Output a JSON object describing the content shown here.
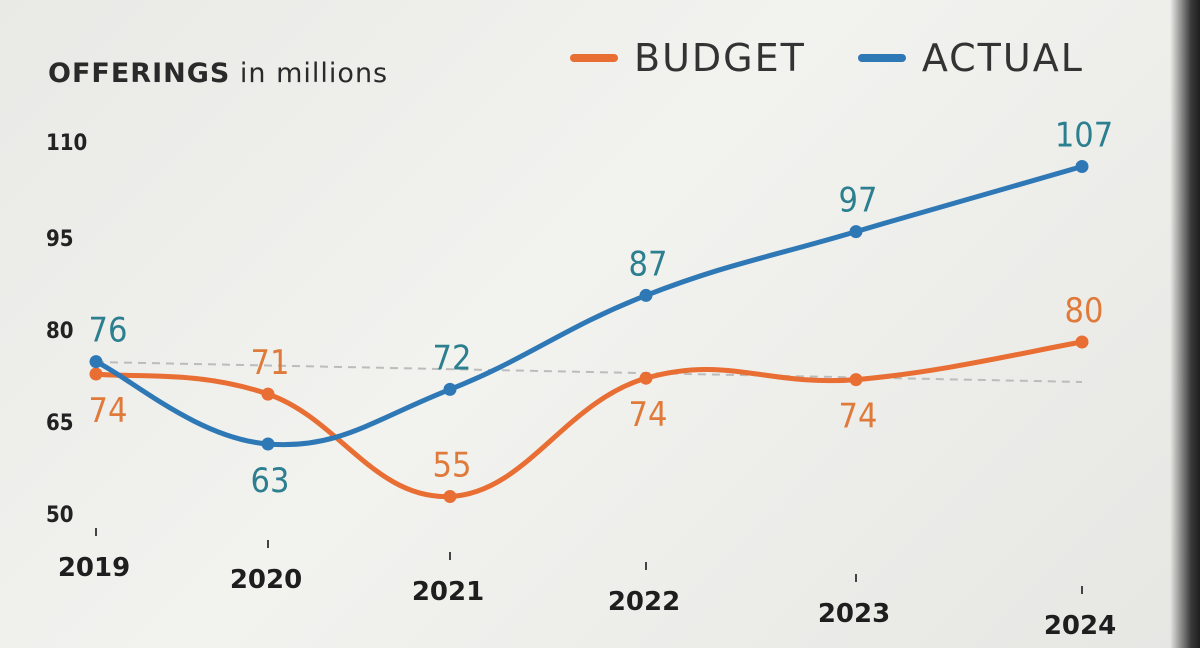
{
  "title": {
    "main": "OFFERINGS",
    "unit": "in millions"
  },
  "legend": [
    {
      "label": "BUDGET",
      "color": "#e86e33"
    },
    {
      "label": "ACTUAL",
      "color": "#2f78b6"
    }
  ],
  "chart_data": {
    "type": "line",
    "title": "OFFERINGS in millions",
    "categories": [
      "2019",
      "2020",
      "2021",
      "2022",
      "2023",
      "2024"
    ],
    "yticks": [
      "110",
      "95",
      "80",
      "65",
      "50"
    ],
    "ylim": [
      50,
      110
    ],
    "series": [
      {
        "name": "BUDGET",
        "color": "#e86e33",
        "label_color": "#e07a3a",
        "values": [
          74,
          71,
          55,
          74,
          74,
          80
        ]
      },
      {
        "name": "ACTUAL",
        "color": "#2f78b6",
        "label_color": "#2c7f8f",
        "values": [
          76,
          63,
          72,
          87,
          97,
          107
        ]
      }
    ],
    "reference_line": {
      "style": "dashed",
      "color": "#bcbcbc"
    },
    "grid": false,
    "legend_position": "top-right"
  }
}
